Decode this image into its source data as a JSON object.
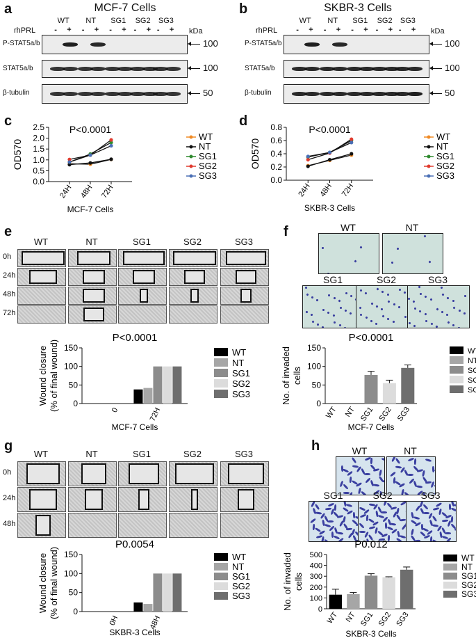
{
  "panel_letters": [
    "a",
    "b",
    "c",
    "d",
    "e",
    "f",
    "g",
    "h"
  ],
  "blots": {
    "a": {
      "title": "MCF-7 Cells",
      "groups": [
        "WT",
        "NT",
        "SG1",
        "SG2",
        "SG3"
      ],
      "rhprl_label": "rhPRL",
      "signs": [
        "-",
        "+",
        "-",
        "+",
        "-",
        "+",
        "-",
        "+",
        "-",
        "+"
      ],
      "kda": "kDa",
      "rows": [
        {
          "label": "P-STAT5a/b",
          "marker": "100"
        },
        {
          "label": "STAT5a/b",
          "marker": "100"
        },
        {
          "label": "β-tubulin",
          "marker": "50"
        }
      ]
    },
    "b": {
      "title": "SKBR-3 Cells",
      "groups": [
        "WT",
        "NT",
        "SG1",
        "SG2",
        "SG3"
      ],
      "rhprl_label": "rhPRL",
      "signs": [
        "-",
        "+",
        "-",
        "+",
        "-",
        "+",
        "-",
        "+",
        "-",
        "+"
      ],
      "kda": "kDa",
      "rows": [
        {
          "label": "P-STAT5a/b",
          "marker": "100"
        },
        {
          "label": "STAT5a/b",
          "marker": "100"
        },
        {
          "label": "β-tubulin",
          "marker": "50"
        }
      ]
    }
  },
  "wound": {
    "e": {
      "cols": [
        "WT",
        "NT",
        "SG1",
        "SG2",
        "SG3"
      ],
      "rows": [
        "0h",
        "24h",
        "48h",
        "72h"
      ]
    },
    "g": {
      "cols": [
        "WT",
        "NT",
        "SG1",
        "SG2",
        "SG3"
      ],
      "rows": [
        "0h",
        "24h",
        "48h"
      ]
    }
  },
  "invasion": {
    "f": {
      "top": [
        "WT",
        "NT"
      ],
      "bottom": [
        "SG1",
        "SG2",
        "SG3"
      ]
    },
    "h": {
      "top": [
        "WT",
        "NT"
      ],
      "bottom": [
        "SG1",
        "SG2",
        "SG3"
      ]
    }
  },
  "colors": {
    "WT": "#f08a24",
    "NT": "#111111",
    "SG1": "#2f8a2f",
    "SG2": "#e03a2e",
    "SG3": "#4a6fb5",
    "bar_WT": "#000000",
    "bar_NT": "#a6a6a6",
    "bar_SG1": "#8c8c8c",
    "bar_SG2": "#dcdcdc",
    "bar_SG3": "#6e6e6e"
  },
  "chart_data": [
    {
      "id": "c",
      "type": "line",
      "title": "P<0.0001",
      "xlabel": "MCF-7 Cells",
      "ylabel": "OD570",
      "categories": [
        "24H",
        "48H",
        "72H"
      ],
      "ylim": [
        0,
        2.5
      ],
      "yticks": [
        "0.0",
        "0.5",
        "1.0",
        "1.5",
        "2.0",
        "2.5"
      ],
      "series": [
        {
          "name": "WT",
          "values": [
            0.82,
            0.8,
            1.02
          ]
        },
        {
          "name": "NT",
          "values": [
            0.78,
            0.86,
            1.03
          ]
        },
        {
          "name": "SG1",
          "values": [
            0.9,
            1.27,
            1.8
          ]
        },
        {
          "name": "SG2",
          "values": [
            1.02,
            1.22,
            1.92
          ]
        },
        {
          "name": "SG3",
          "values": [
            0.9,
            1.22,
            1.65
          ]
        }
      ],
      "legend": "right"
    },
    {
      "id": "d",
      "type": "line",
      "title": "P<0.0001",
      "xlabel": "SKBR-3 Cells",
      "ylabel": "OD570",
      "categories": [
        "24H",
        "48H",
        "72H"
      ],
      "ylim": [
        0.0,
        0.8
      ],
      "yticks": [
        "0.0",
        "0.2",
        "0.4",
        "0.6",
        "0.8"
      ],
      "series": [
        {
          "name": "WT",
          "values": [
            0.22,
            0.3,
            0.38
          ]
        },
        {
          "name": "NT",
          "values": [
            0.21,
            0.31,
            0.4
          ]
        },
        {
          "name": "SG1",
          "values": [
            0.35,
            0.42,
            0.6
          ]
        },
        {
          "name": "SG2",
          "values": [
            0.31,
            0.41,
            0.62
          ]
        },
        {
          "name": "SG3",
          "values": [
            0.36,
            0.42,
            0.57
          ]
        }
      ],
      "legend": "right"
    },
    {
      "id": "e",
      "type": "bar",
      "title": "P<0.0001",
      "xlabel": "MCF-7 Cells",
      "ylabel": "Wound closure\n(% of final wound)",
      "categories": [
        "0",
        "72H"
      ],
      "ylim": [
        0,
        150
      ],
      "yticks": [
        "0",
        "50",
        "100",
        "150"
      ],
      "series": [
        {
          "name": "WT",
          "values": [
            0,
            38
          ]
        },
        {
          "name": "NT",
          "values": [
            0,
            42
          ]
        },
        {
          "name": "SG1",
          "values": [
            0,
            100
          ]
        },
        {
          "name": "SG2",
          "values": [
            0,
            100
          ]
        },
        {
          "name": "SG3",
          "values": [
            0,
            100
          ]
        }
      ],
      "legend": "right"
    },
    {
      "id": "f",
      "type": "bar",
      "title": "P<0.0001",
      "xlabel": "MCF-7 Cells",
      "ylabel": "No. of invaded\ncells",
      "categories": [
        "WT",
        "NT",
        "SG1",
        "SG2",
        "SG3"
      ],
      "ylim": [
        0,
        150
      ],
      "yticks": [
        "0",
        "50",
        "100",
        "150"
      ],
      "values": [
        0,
        0,
        77,
        55,
        96
      ],
      "errors": [
        0,
        0,
        10,
        8,
        8
      ],
      "legend": "right"
    },
    {
      "id": "g",
      "type": "bar",
      "title": "P0.0054",
      "xlabel": "SKBR-3 Cells",
      "ylabel": "Wound closure\n(% of final wound)",
      "categories": [
        "0H",
        "48H"
      ],
      "ylim": [
        0,
        150
      ],
      "yticks": [
        "0",
        "50",
        "100",
        "150"
      ],
      "series": [
        {
          "name": "WT",
          "values": [
            0,
            24
          ]
        },
        {
          "name": "NT",
          "values": [
            0,
            20
          ]
        },
        {
          "name": "SG1",
          "values": [
            0,
            100
          ]
        },
        {
          "name": "SG2",
          "values": [
            0,
            100
          ]
        },
        {
          "name": "SG3",
          "values": [
            0,
            100
          ]
        }
      ],
      "legend": "right"
    },
    {
      "id": "h",
      "type": "bar",
      "title": "P0.012",
      "xlabel": "SKBR-3 Cells",
      "ylabel": "No. of invaded\ncells",
      "categories": [
        "WT",
        "NT",
        "SG1",
        "SG2",
        "SG3"
      ],
      "ylim": [
        0,
        500
      ],
      "yticks": [
        "0",
        "100",
        "200",
        "300",
        "400",
        "500"
      ],
      "values": [
        130,
        135,
        305,
        290,
        360
      ],
      "errors": [
        50,
        15,
        18,
        5,
        25
      ],
      "legend": "right"
    }
  ]
}
